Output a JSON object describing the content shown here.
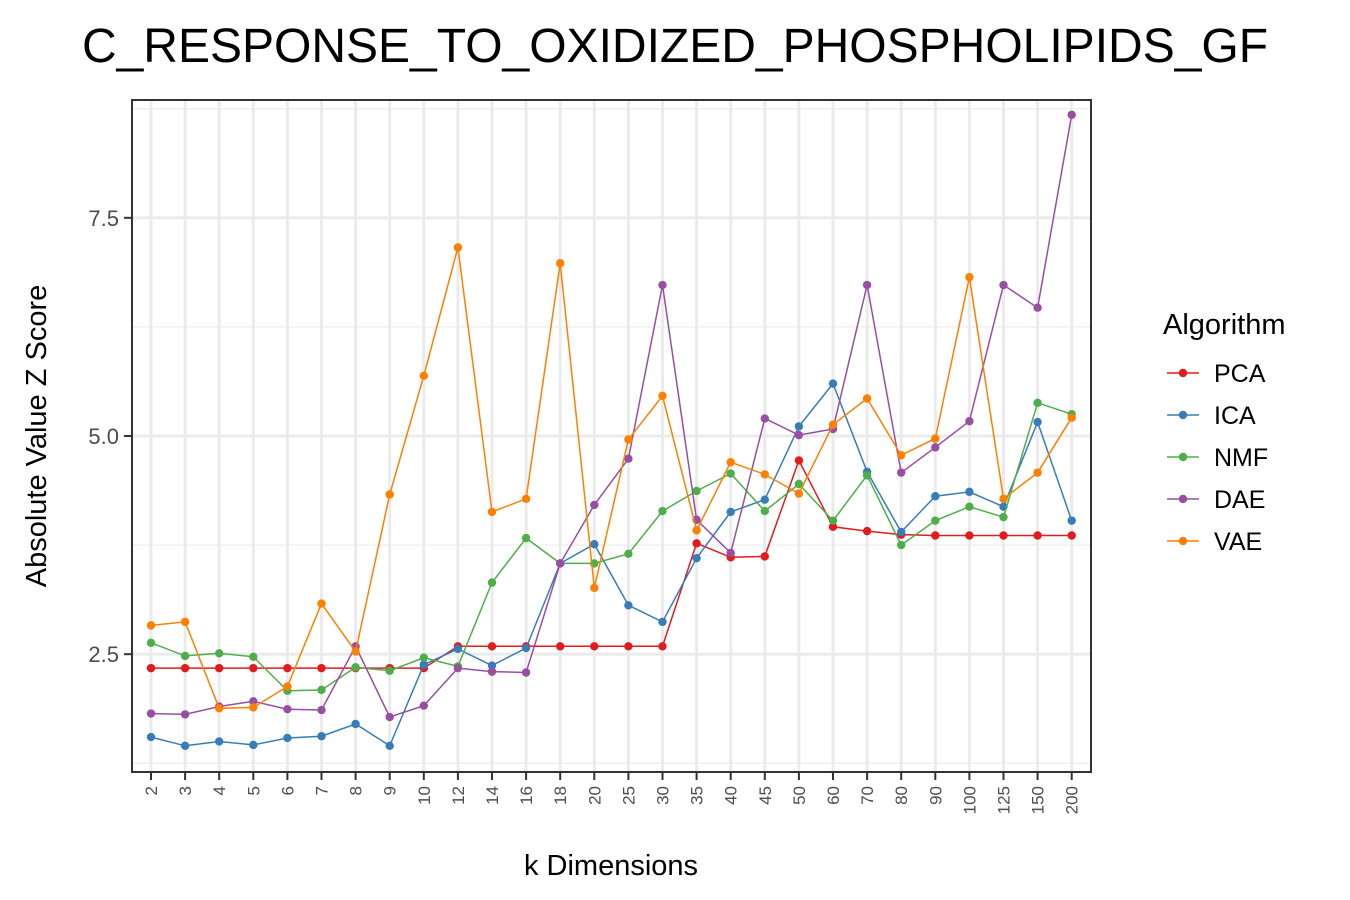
{
  "chart_data": {
    "type": "line",
    "title": "C_RESPONSE_TO_OXIDIZED_PHOSPHOLIPIDS_GF",
    "xlabel": "k Dimensions",
    "ylabel": "Absolute Value Z Score",
    "categories": [
      "2",
      "3",
      "4",
      "5",
      "6",
      "7",
      "8",
      "9",
      "10",
      "12",
      "14",
      "16",
      "18",
      "20",
      "25",
      "30",
      "35",
      "40",
      "45",
      "50",
      "60",
      "70",
      "80",
      "90",
      "100",
      "125",
      "150",
      "200"
    ],
    "ylim": [
      1.15,
      8.85
    ],
    "yticks": [
      2.5,
      5.0,
      7.5
    ],
    "ytick_labels": [
      "2.5",
      "5.0",
      "7.5"
    ],
    "grid": true,
    "legend_title": "Algorithm",
    "legend_position": "right",
    "series": [
      {
        "name": "PCA",
        "color": "#e41a1c",
        "values": [
          2.34,
          2.34,
          2.34,
          2.34,
          2.34,
          2.34,
          2.34,
          2.34,
          2.34,
          2.59,
          2.59,
          2.59,
          2.59,
          2.59,
          2.59,
          2.59,
          3.77,
          3.61,
          3.62,
          4.72,
          3.96,
          3.91,
          3.87,
          3.86,
          3.86,
          3.86,
          3.86,
          3.86
        ]
      },
      {
        "name": "ICA",
        "color": "#377eb8",
        "values": [
          1.55,
          1.45,
          1.5,
          1.46,
          1.54,
          1.56,
          1.7,
          1.45,
          2.38,
          2.56,
          2.37,
          2.57,
          3.54,
          3.76,
          3.06,
          2.87,
          3.6,
          4.13,
          4.27,
          5.11,
          5.6,
          4.59,
          3.9,
          4.31,
          4.36,
          4.19,
          5.16,
          4.03
        ]
      },
      {
        "name": "NMF",
        "color": "#4daf4a",
        "values": [
          2.63,
          2.48,
          2.51,
          2.47,
          2.08,
          2.09,
          2.35,
          2.31,
          2.46,
          2.36,
          3.32,
          3.83,
          3.54,
          3.54,
          3.65,
          4.14,
          4.37,
          4.57,
          4.14,
          4.45,
          4.03,
          4.55,
          3.75,
          4.03,
          4.19,
          4.07,
          5.38,
          5.25
        ]
      },
      {
        "name": "DAE",
        "color": "#984ea3",
        "values": [
          1.82,
          1.81,
          1.9,
          1.96,
          1.87,
          1.86,
          2.59,
          1.78,
          1.91,
          2.34,
          2.3,
          2.29,
          3.54,
          4.21,
          4.74,
          6.73,
          4.04,
          3.66,
          5.2,
          5.01,
          5.08,
          6.73,
          4.58,
          4.87,
          5.17,
          6.73,
          6.47,
          8.68
        ]
      },
      {
        "name": "VAE",
        "color": "#ff7f00",
        "values": [
          2.83,
          2.87,
          1.88,
          1.89,
          2.13,
          3.08,
          2.53,
          4.33,
          5.69,
          7.16,
          4.13,
          4.28,
          6.98,
          3.26,
          4.96,
          5.46,
          3.92,
          4.7,
          4.56,
          4.34,
          5.13,
          5.43,
          4.78,
          4.97,
          6.82,
          4.28,
          4.58,
          5.21
        ]
      }
    ]
  }
}
